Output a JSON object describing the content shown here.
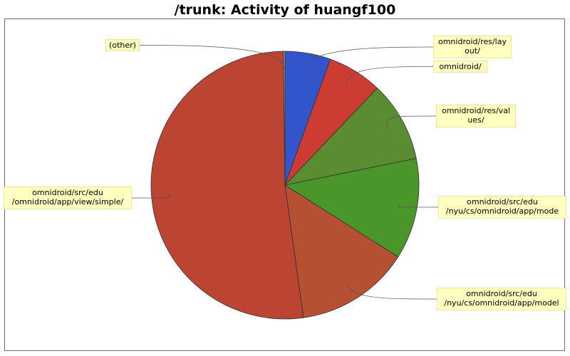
{
  "chart_data": {
    "type": "pie",
    "title": "/trunk: Activity of huangf100",
    "slices": [
      {
        "label": "omnidroid/res/lay\nout/",
        "value": 5.5,
        "color": "#3355cc"
      },
      {
        "label": "omnidroid/",
        "value": 6.6,
        "color": "#cc3c33"
      },
      {
        "label": "omnidroid/res/val\nues/",
        "value": 9.7,
        "color": "#5a8c32"
      },
      {
        "label": "omnidroid/src/edu\n/nyu/cs/omnidroid/app/mode",
        "value": 12.2,
        "color": "#4a962a"
      },
      {
        "label": "omnidroid/src/edu\n/nyu/cs/omnidroid/app/model",
        "value": 13.8,
        "color": "#b55033"
      },
      {
        "label": "omnidroid/src/edu\n/omnidroid/app/view/simple/",
        "value": 52.0,
        "color": "#bb4433"
      },
      {
        "label": "(other)",
        "value": 0.2,
        "color": "#999999"
      }
    ]
  }
}
